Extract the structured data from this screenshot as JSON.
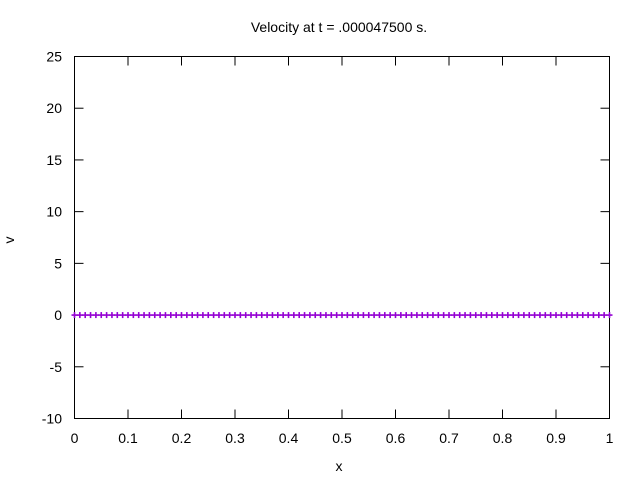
{
  "chart_data": {
    "type": "scatter",
    "title": "Velocity at t = .000047500 s.",
    "xlabel": "x",
    "ylabel": "v",
    "xlim": [
      0,
      1
    ],
    "ylim": [
      -10,
      25
    ],
    "xticks": [
      {
        "value": 0,
        "label": "0"
      },
      {
        "value": 0.1,
        "label": "0.1"
      },
      {
        "value": 0.2,
        "label": "0.2"
      },
      {
        "value": 0.3,
        "label": "0.3"
      },
      {
        "value": 0.4,
        "label": "0.4"
      },
      {
        "value": 0.5,
        "label": "0.5"
      },
      {
        "value": 0.6,
        "label": "0.6"
      },
      {
        "value": 0.7,
        "label": "0.7"
      },
      {
        "value": 0.8,
        "label": "0.8"
      },
      {
        "value": 0.9,
        "label": "0.9"
      },
      {
        "value": 1,
        "label": "1"
      }
    ],
    "yticks": [
      {
        "value": 25,
        "label": "25"
      },
      {
        "value": 20,
        "label": "20"
      },
      {
        "value": 15,
        "label": "15"
      },
      {
        "value": 10,
        "label": "10"
      },
      {
        "value": 5,
        "label": "5"
      },
      {
        "value": 0,
        "label": "0"
      },
      {
        "value": -5,
        "label": "-5"
      },
      {
        "value": -10,
        "label": "-10"
      }
    ],
    "grid": false,
    "legend": "none",
    "series": [
      {
        "color": "#9400d3",
        "marker": "plus",
        "x_start": 0,
        "x_end": 1,
        "x_step": 0.01,
        "y_constant": 0
      }
    ]
  }
}
